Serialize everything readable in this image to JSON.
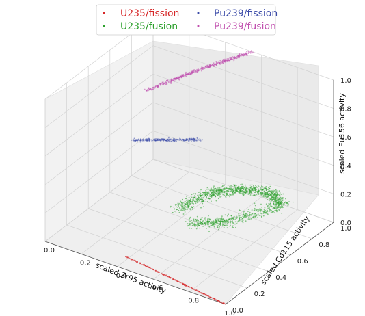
{
  "chart_data": {
    "type": "scatter",
    "projection": "3d",
    "xlabel": "scaled Zr95 activity",
    "ylabel": "scaled Cd115 activity",
    "zlabel": "scaled Eu156 activity",
    "xlim": [
      0,
      1
    ],
    "ylim": [
      0,
      1
    ],
    "zlim": [
      0,
      1
    ],
    "xticks": [
      "0.0",
      "0.2",
      "0.4",
      "0.6",
      "0.8",
      "1.0"
    ],
    "yticks": [
      "0.0",
      "0.2",
      "0.4",
      "0.6",
      "0.8",
      "1.0"
    ],
    "zticks": [
      "0.0",
      "0.2",
      "0.4",
      "0.6",
      "0.8",
      "1.0"
    ],
    "grid": true,
    "legend_position": "top-center",
    "series": [
      {
        "name": "U235/fission",
        "color": "#d62728",
        "x": [
          0.42,
          1.0
        ],
        "y": [
          0.05,
          0.0
        ],
        "z": [
          0.05,
          0.0
        ]
      },
      {
        "name": "U235/fusion",
        "color": "#2ca02c",
        "x": [
          0.4,
          0.45,
          0.55,
          0.7,
          0.8,
          0.65,
          0.5
        ],
        "y": [
          0.55,
          0.75,
          0.85,
          0.9,
          0.85,
          0.6,
          0.5
        ],
        "z": [
          0.08,
          0.1,
          0.12,
          0.14,
          0.12,
          0.08,
          0.06
        ]
      },
      {
        "name": "Pu239/fission",
        "color": "#3b4ba8",
        "x": [
          0.05,
          0.3
        ],
        "y": [
          0.72,
          0.95
        ],
        "z": [
          0.32,
          0.3
        ]
      },
      {
        "name": "Pu239/fusion",
        "color": "#c04fae",
        "x": [
          0.02,
          0.3,
          0.55
        ],
        "y": [
          0.9,
          0.95,
          1.0
        ],
        "z": [
          0.55,
          0.8,
          1.0
        ]
      }
    ]
  }
}
